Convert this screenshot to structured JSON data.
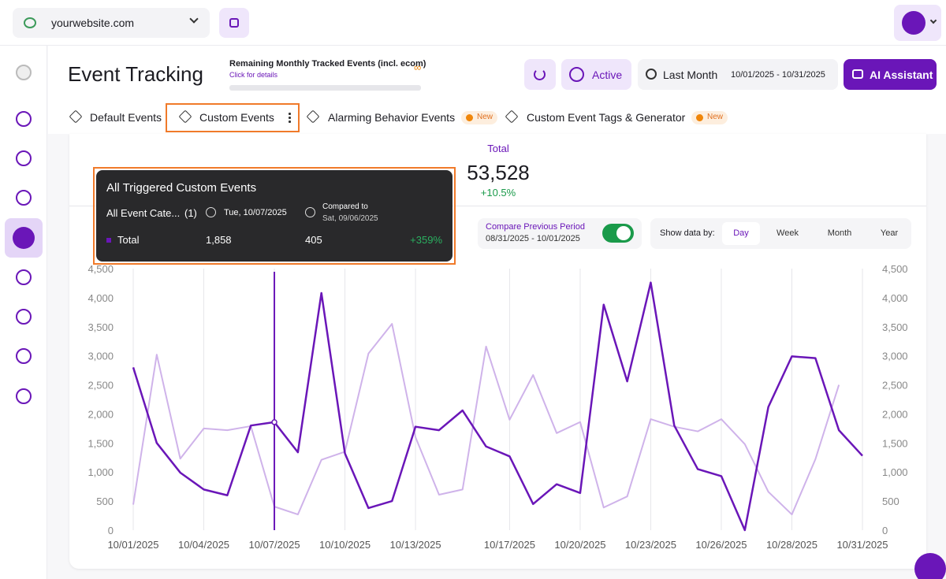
{
  "header": {
    "site": "yourwebsite.com"
  },
  "page": {
    "title": "Event Tracking",
    "quota_label": "Remaining Monthly Tracked Events (incl. ecom)",
    "quota_value": "∞",
    "quota_link": "Click for details",
    "status": "Active",
    "period": "Last Month",
    "date_range": "10/01/2025 - 10/31/2025",
    "assistant": "AI Assistant"
  },
  "tabs": [
    {
      "label": "Default Events"
    },
    {
      "label": "Custom Events"
    },
    {
      "label": "Alarming Behavior Events",
      "badge": "New"
    },
    {
      "label": "Custom Event Tags & Generator",
      "badge": "New"
    }
  ],
  "summary": {
    "label": "Total",
    "value": "53,528",
    "change": "+10.5%"
  },
  "compare": {
    "label": "Compare Previous Period",
    "range": "08/31/2025 - 10/01/2025"
  },
  "granularity": {
    "label": "Show data by:",
    "options": [
      "Day",
      "Week",
      "Month",
      "Year"
    ]
  },
  "tooltip": {
    "title": "All Triggered Custom Events",
    "category": "All Event Cate...",
    "count": "(1)",
    "date": "Tue, 10/07/2025",
    "compared_label": "Compared to",
    "compared_date": "Sat, 09/06/2025",
    "series": "Total",
    "current": "1,858",
    "previous": "405",
    "change": "+359%"
  },
  "chart_data": {
    "type": "line",
    "categories": [
      "10/01/2025",
      null,
      null,
      "10/04/2025",
      null,
      null,
      "10/07/2025",
      null,
      null,
      "10/10/2025",
      null,
      null,
      "10/13/2025",
      null,
      null,
      null,
      "10/17/2025",
      null,
      null,
      "10/20/2025",
      null,
      null,
      "10/23/2025",
      null,
      null,
      "10/26/2025",
      null,
      null,
      "10/28/2025",
      null,
      null,
      "10/31/2025"
    ],
    "series": [
      {
        "name": "Total",
        "color": "#6a16b8",
        "values": [
          2800,
          1500,
          990,
          700,
          600,
          1800,
          1858,
          1340,
          4080,
          1320,
          380,
          500,
          1780,
          1720,
          2060,
          1440,
          1270,
          450,
          790,
          640,
          3880,
          2560,
          4260,
          1800,
          1050,
          930,
          0,
          2120,
          2990,
          2960,
          1720,
          1280
        ]
      },
      {
        "color": "#cfb3ea",
        "values": [
          440,
          3020,
          1230,
          1750,
          1720,
          1790,
          405,
          270,
          1210,
          1350,
          3040,
          3550,
          1600,
          610,
          700,
          3160,
          1900,
          2670,
          1670,
          1860,
          390,
          580,
          1910,
          1780,
          1700,
          1910,
          1480,
          660,
          270,
          1220,
          2500,
          null
        ]
      }
    ],
    "ylim": [
      0,
      4500
    ],
    "yticks": [
      0,
      500,
      {
        "value": 1000,
        "label": "1,000"
      },
      {
        "value": 1500,
        "label": "1,500"
      },
      {
        "value": 2000,
        "label": "2,000"
      },
      {
        "value": 2500,
        "label": "2,500"
      },
      {
        "value": 3000,
        "label": "3,000"
      },
      {
        "value": 3500,
        "label": "3,500"
      },
      {
        "value": 4000,
        "label": "4,000"
      },
      {
        "value": 4500,
        "label": "4,500"
      }
    ],
    "y2lim": [
      0,
      4500
    ],
    "y2ticks": [
      0,
      500,
      {
        "value": 1000,
        "label": "1,000"
      },
      {
        "value": 1500,
        "label": "1,500"
      },
      {
        "value": 2000,
        "label": "2,000"
      },
      {
        "value": 2500,
        "label": "2,500"
      },
      {
        "value": 3000,
        "label": "3,000"
      },
      {
        "value": 3500,
        "label": "3,500"
      },
      {
        "value": 4000,
        "label": "4,000"
      },
      {
        "value": 4500,
        "label": "4,500"
      }
    ],
    "grid": "x"
  }
}
